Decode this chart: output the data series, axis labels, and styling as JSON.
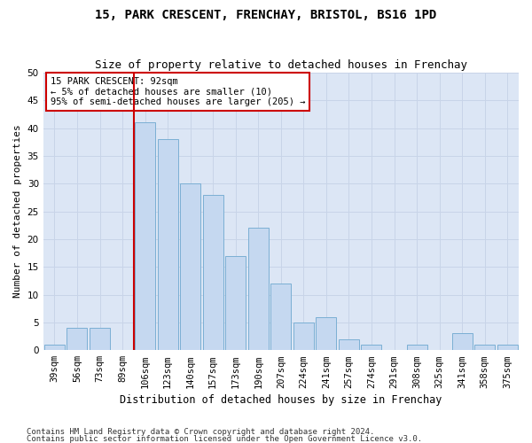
{
  "title1": "15, PARK CRESCENT, FRENCHAY, BRISTOL, BS16 1PD",
  "title2": "Size of property relative to detached houses in Frenchay",
  "xlabel": "Distribution of detached houses by size in Frenchay",
  "ylabel": "Number of detached properties",
  "categories": [
    "39sqm",
    "56sqm",
    "73sqm",
    "89sqm",
    "106sqm",
    "123sqm",
    "140sqm",
    "157sqm",
    "173sqm",
    "190sqm",
    "207sqm",
    "224sqm",
    "241sqm",
    "257sqm",
    "274sqm",
    "291sqm",
    "308sqm",
    "325sqm",
    "341sqm",
    "358sqm",
    "375sqm"
  ],
  "values": [
    1,
    4,
    4,
    0,
    41,
    38,
    30,
    28,
    17,
    22,
    12,
    5,
    6,
    2,
    1,
    0,
    1,
    0,
    3,
    1,
    1
  ],
  "bar_color": "#c5d8f0",
  "bar_edge_color": "#7bafd4",
  "property_line_x": 3.5,
  "property_line_color": "#cc0000",
  "annotation_text": "15 PARK CRESCENT: 92sqm\n← 5% of detached houses are smaller (10)\n95% of semi-detached houses are larger (205) →",
  "annotation_box_color": "#ffffff",
  "annotation_box_edge_color": "#cc0000",
  "ylim": [
    0,
    50
  ],
  "yticks": [
    0,
    5,
    10,
    15,
    20,
    25,
    30,
    35,
    40,
    45,
    50
  ],
  "grid_color": "#c8d4e8",
  "background_color": "#dce6f5",
  "footer1": "Contains HM Land Registry data © Crown copyright and database right 2024.",
  "footer2": "Contains public sector information licensed under the Open Government Licence v3.0.",
  "title1_fontsize": 10,
  "title2_fontsize": 9,
  "xlabel_fontsize": 8.5,
  "ylabel_fontsize": 8,
  "tick_fontsize": 7.5,
  "annot_fontsize": 7.5,
  "footer_fontsize": 6.5
}
